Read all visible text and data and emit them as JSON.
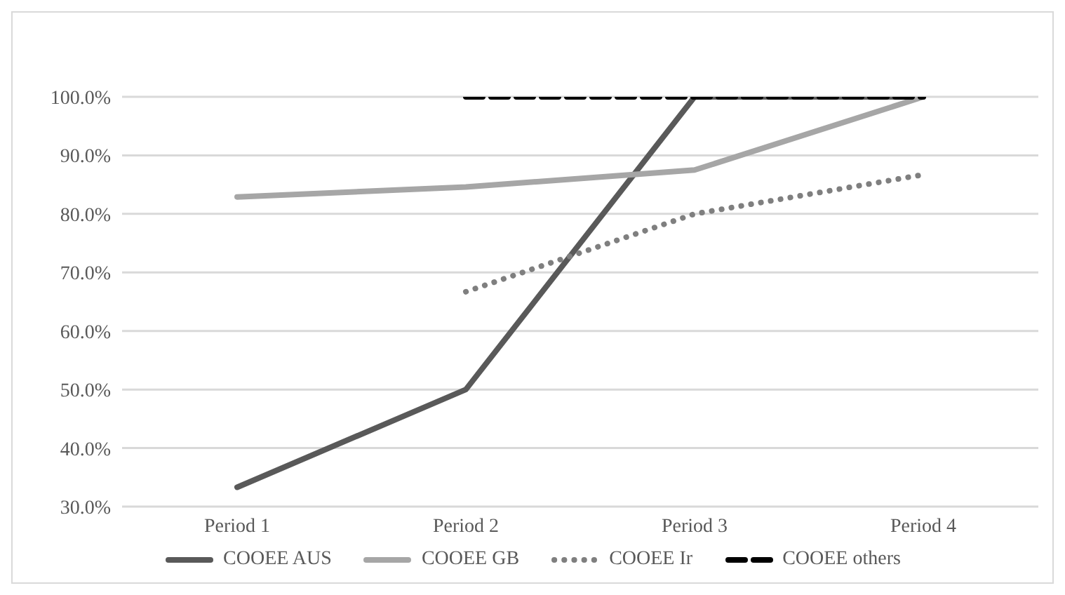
{
  "chart_data": {
    "type": "line",
    "categories": [
      "Period 1",
      "Period 2",
      "Period 3",
      "Period 4"
    ],
    "series": [
      {
        "name": "COOEE AUS",
        "color": "#595959",
        "line_style": "solid",
        "values": [
          33.3,
          50,
          100,
          100
        ]
      },
      {
        "name": "COOEE GB",
        "color": "#a6a6a6",
        "line_style": "solid",
        "values": [
          82.9,
          84.6,
          87.5,
          100
        ]
      },
      {
        "name": "COOEE Ir",
        "color": "#7f7f7f",
        "line_style": "dotted",
        "values": [
          null,
          66.7,
          80,
          86.7
        ]
      },
      {
        "name": "COOEE others",
        "color": "#000000",
        "line_style": "dashed",
        "values": [
          null,
          100,
          100,
          100
        ]
      }
    ],
    "ylim": [
      30,
      100
    ],
    "yticks": [
      {
        "value": 30,
        "label": "30.0%"
      },
      {
        "value": 40,
        "label": "40.0%"
      },
      {
        "value": 50,
        "label": "50.0%"
      },
      {
        "value": 60,
        "label": "60.0%"
      },
      {
        "value": 70,
        "label": "70.0%"
      },
      {
        "value": 80,
        "label": "80.0%"
      },
      {
        "value": 90,
        "label": "90.0%"
      },
      {
        "value": 100,
        "label": "100.0%"
      }
    ],
    "grid": "y",
    "legend": "bottom",
    "marker": "none"
  }
}
